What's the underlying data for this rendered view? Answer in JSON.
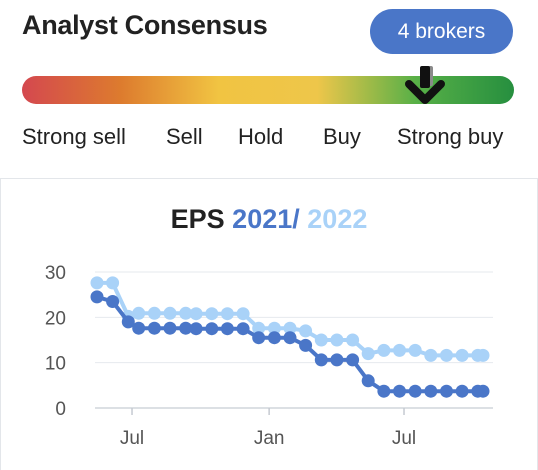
{
  "consensus": {
    "title": "Analyst Consensus",
    "brokers_label": "4 brokers",
    "rating_scale": [
      "Strong sell",
      "Sell",
      "Hold",
      "Buy",
      "Strong buy"
    ],
    "rating_value": 4.8,
    "rating_max": 5,
    "marker_icon": "arrow-down-icon",
    "gauge_colors": [
      "#d4484f",
      "#dd7b2e",
      "#f1c442",
      "#eec64a",
      "#58b047",
      "#268f3f"
    ],
    "brokers_color": "#4a76c8"
  },
  "eps": {
    "label": "EPS",
    "year_a": "2021",
    "separator": "/",
    "year_b": "2022"
  },
  "chart_data": {
    "type": "line",
    "x": [
      "2020-05-15",
      "2020-06-05",
      "2020-06-26",
      "2020-07-10",
      "2020-07-31",
      "2020-08-21",
      "2020-09-11",
      "2020-09-25",
      "2020-10-16",
      "2020-11-06",
      "2020-11-27",
      "2020-12-18",
      "2021-01-08",
      "2021-01-29",
      "2021-02-19",
      "2021-03-12",
      "2021-04-02",
      "2021-04-23",
      "2021-05-14",
      "2021-06-04",
      "2021-06-25",
      "2021-07-16",
      "2021-08-06",
      "2021-08-27",
      "2021-09-17",
      "2021-10-08",
      "2021-10-15"
    ],
    "series": [
      {
        "name": "2021",
        "color": "#4a76c8",
        "values": [
          24.5,
          23.5,
          19.0,
          17.6,
          17.6,
          17.6,
          17.6,
          17.5,
          17.5,
          17.5,
          17.5,
          15.5,
          15.5,
          15.5,
          13.8,
          10.6,
          10.6,
          10.6,
          6.0,
          3.7,
          3.7,
          3.7,
          3.7,
          3.7,
          3.7,
          3.7,
          3.7
        ]
      },
      {
        "name": "2022",
        "color": "#a9d2f8",
        "values": [
          27.6,
          27.6,
          20.2,
          20.9,
          20.9,
          20.9,
          20.9,
          20.8,
          20.8,
          20.8,
          20.8,
          17.6,
          17.6,
          17.6,
          17.0,
          15.0,
          15.0,
          15.0,
          12.0,
          12.7,
          12.7,
          12.7,
          11.6,
          11.6,
          11.6,
          11.6,
          11.6
        ]
      }
    ],
    "y_ticks": [
      0,
      10,
      20,
      30
    ],
    "ylim": [
      0,
      30
    ],
    "x_tick_labels": [
      "Jul",
      "Jan",
      "Jul"
    ],
    "grid": true
  }
}
